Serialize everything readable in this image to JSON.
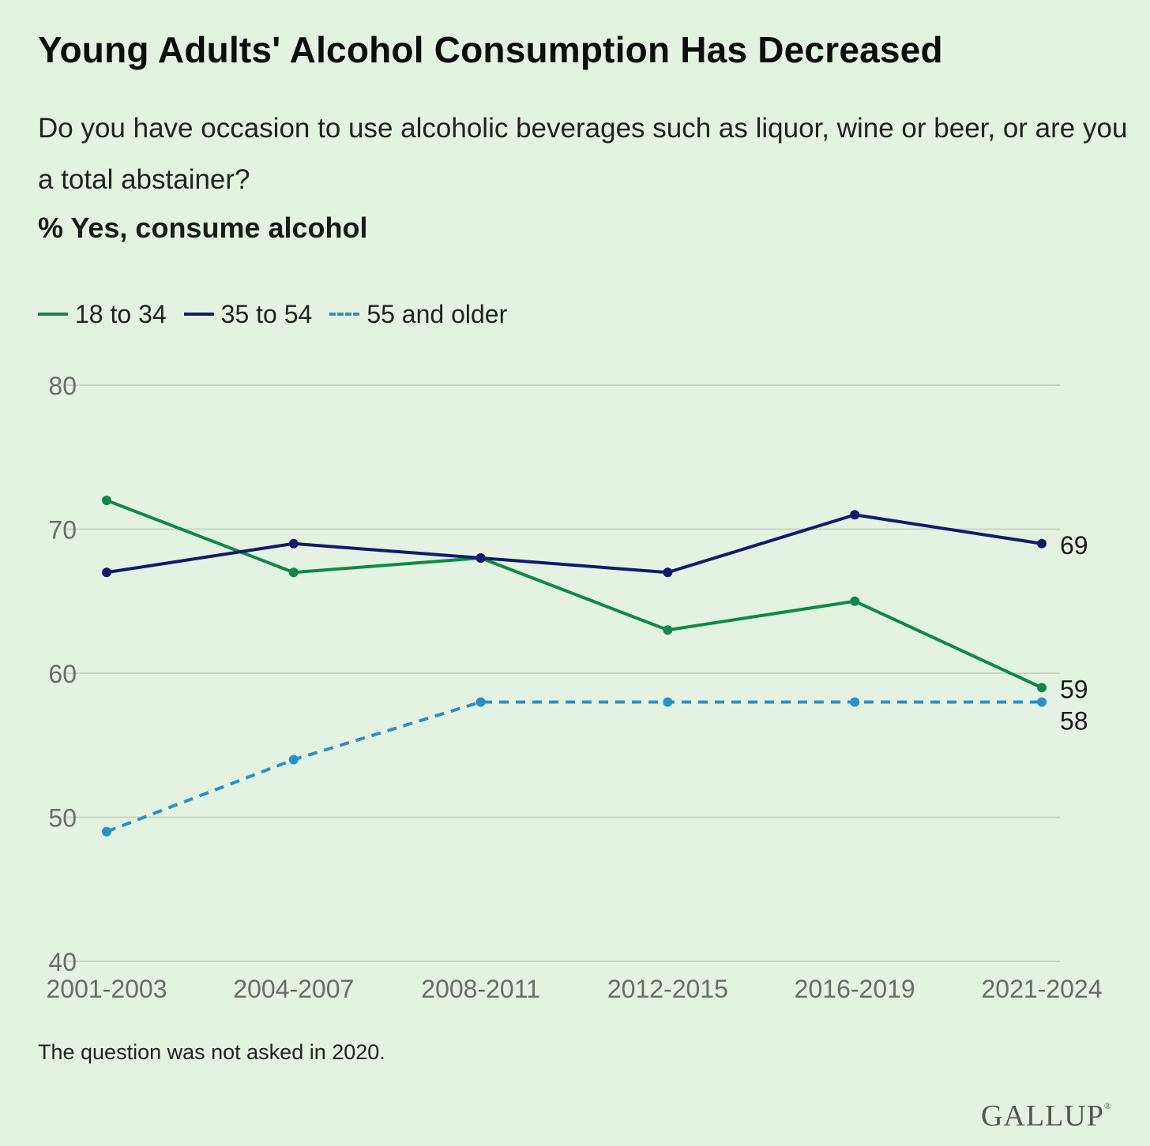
{
  "header": {
    "title": "Young Adults' Alcohol Consumption Has Decreased",
    "subtitle": "Do you have occasion to use alcoholic beverages such as liquor, wine or beer, or are you a total abstainer?",
    "measure": "% Yes, consume alcohol"
  },
  "footer": {
    "note": "The question was not asked in 2020.",
    "logo": "GALLUP"
  },
  "colors": {
    "background": "#e4f2e1",
    "grid": "#c9d6c6",
    "axis_text": "#6b6b6b"
  },
  "chart_data": {
    "type": "line",
    "categories": [
      "2001-2003",
      "2004-2007",
      "2008-2011",
      "2012-2015",
      "2016-2019",
      "2021-2024"
    ],
    "ylim": [
      40,
      80
    ],
    "yticks": [
      40,
      50,
      60,
      70,
      80
    ],
    "grid": true,
    "legend_position": "top-left",
    "series": [
      {
        "name": "18 to 34",
        "color": "#0e8a45",
        "dashed": false,
        "values": [
          72,
          67,
          68,
          63,
          65,
          59
        ],
        "end_label": "59"
      },
      {
        "name": "35 to 54",
        "color": "#101b6b",
        "dashed": false,
        "values": [
          67,
          69,
          68,
          67,
          71,
          69
        ],
        "end_label": "69"
      },
      {
        "name": "55 and older",
        "color": "#2a90c8",
        "dashed": true,
        "values": [
          49,
          54,
          58,
          58,
          58,
          58
        ],
        "end_label": "58"
      }
    ]
  }
}
